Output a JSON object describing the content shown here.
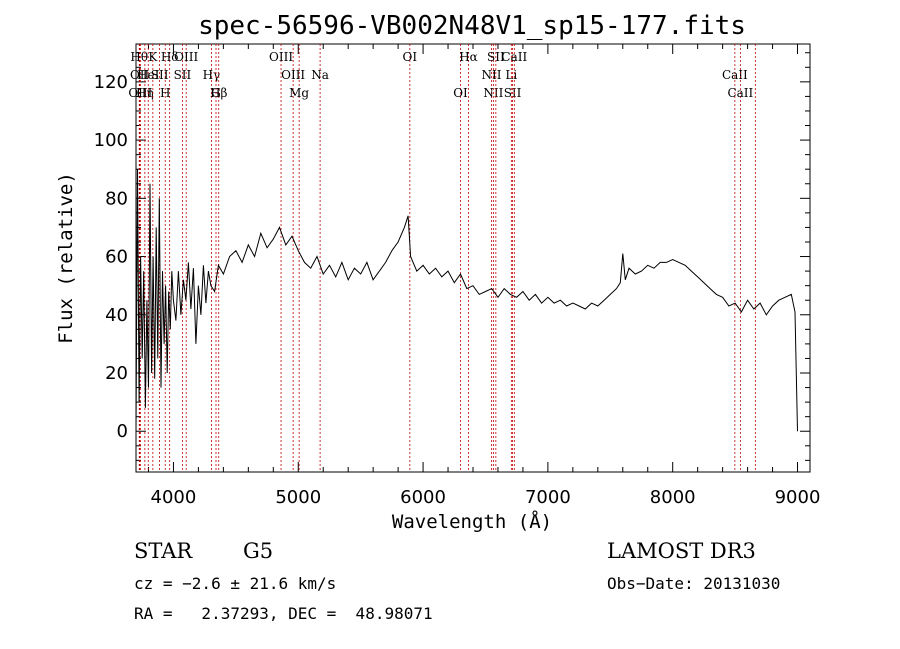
{
  "chart_data": {
    "type": "line",
    "title": "spec-56596-VB002N48V1_sp15-177.fits",
    "xlabel": "Wavelength (Å)",
    "ylabel": "Flux (relative)",
    "xlim": [
      3700,
      9100
    ],
    "ylim": [
      -14,
      133
    ],
    "xticks": [
      4000,
      5000,
      6000,
      7000,
      8000,
      9000
    ],
    "yticks": [
      0,
      20,
      40,
      60,
      80,
      100,
      120
    ],
    "grid": false,
    "series": [
      {
        "name": "flux",
        "x": [
          3700,
          3712,
          3725,
          3737,
          3750,
          3762,
          3775,
          3787,
          3800,
          3812,
          3825,
          3837,
          3850,
          3862,
          3875,
          3887,
          3900,
          3912,
          3925,
          3937,
          3950,
          3962,
          3975,
          3987,
          4000,
          4020,
          4040,
          4060,
          4080,
          4100,
          4120,
          4140,
          4160,
          4180,
          4200,
          4220,
          4240,
          4260,
          4280,
          4300,
          4330,
          4360,
          4400,
          4450,
          4500,
          4550,
          4600,
          4650,
          4700,
          4750,
          4800,
          4850,
          4900,
          4950,
          5000,
          5050,
          5100,
          5150,
          5200,
          5250,
          5300,
          5350,
          5400,
          5450,
          5500,
          5550,
          5600,
          5650,
          5700,
          5750,
          5800,
          5850,
          5880,
          5900,
          5920,
          5950,
          6000,
          6050,
          6100,
          6150,
          6200,
          6250,
          6300,
          6350,
          6400,
          6450,
          6500,
          6550,
          6600,
          6650,
          6700,
          6750,
          6800,
          6850,
          6900,
          6950,
          7000,
          7050,
          7100,
          7150,
          7200,
          7250,
          7300,
          7350,
          7400,
          7450,
          7500,
          7550,
          7580,
          7600,
          7620,
          7650,
          7700,
          7750,
          7800,
          7850,
          7900,
          7950,
          8000,
          8050,
          8100,
          8150,
          8200,
          8250,
          8300,
          8350,
          8400,
          8450,
          8500,
          8550,
          8600,
          8650,
          8700,
          8750,
          8800,
          8850,
          8900,
          8950,
          8980,
          9000
        ],
        "values": [
          0,
          90,
          10,
          60,
          25,
          55,
          8,
          45,
          15,
          85,
          20,
          60,
          18,
          70,
          25,
          80,
          15,
          55,
          30,
          50,
          20,
          48,
          35,
          55,
          45,
          38,
          55,
          40,
          52,
          45,
          58,
          42,
          56,
          30,
          50,
          40,
          57,
          44,
          55,
          50,
          48,
          57,
          54,
          60,
          62,
          58,
          64,
          60,
          68,
          63,
          66,
          70,
          64,
          67,
          62,
          58,
          56,
          60,
          54,
          57,
          53,
          58,
          52,
          56,
          54,
          58,
          52,
          55,
          58,
          62,
          65,
          70,
          74,
          60,
          58,
          55,
          57,
          54,
          56,
          53,
          55,
          51,
          54,
          49,
          50,
          47,
          48,
          49,
          46,
          49,
          47,
          46,
          48,
          45,
          47,
          44,
          46,
          44,
          45,
          43,
          44,
          43,
          42,
          44,
          43,
          45,
          47,
          49,
          51,
          61,
          52,
          56,
          54,
          55,
          57,
          56,
          58,
          58,
          59,
          58,
          57,
          55,
          53,
          51,
          49,
          47,
          46,
          43,
          44,
          41,
          45,
          42,
          44,
          40,
          43,
          45,
          46,
          47,
          41,
          0
        ]
      }
    ],
    "line_markers": [
      {
        "label": "Hθ",
        "x": 3726,
        "row": 0
      },
      {
        "label": "OII",
        "x": 3729,
        "row": 1
      },
      {
        "label": "OIII",
        "x": 3735,
        "row": 2
      },
      {
        "label": "Hη",
        "x": 3771,
        "row": 2
      },
      {
        "label": "HeI",
        "x": 3798,
        "row": 1
      },
      {
        "label": "K",
        "x": 3835,
        "row": 0
      },
      {
        "label": "SII",
        "x": 3889,
        "row": 1
      },
      {
        "label": "H",
        "x": 3934,
        "row": 2
      },
      {
        "label": "Hδ",
        "x": 3970,
        "row": 0
      },
      {
        "label": "SII",
        "x": 4072,
        "row": 1
      },
      {
        "label": "OIII",
        "x": 4102,
        "row": 0
      },
      {
        "label": "Hγ",
        "x": 4304,
        "row": 1
      },
      {
        "label": "G",
        "x": 4341,
        "row": 2
      },
      {
        "label": "Hβ",
        "x": 4363,
        "row": 2
      },
      {
        "label": "OIII",
        "x": 4862,
        "row": 0
      },
      {
        "label": "OIII",
        "x": 4959,
        "row": 1
      },
      {
        "label": "Mg",
        "x": 5007,
        "row": 2
      },
      {
        "label": "Na",
        "x": 5175,
        "row": 1
      },
      {
        "label": "OI",
        "x": 5894,
        "row": 0
      },
      {
        "label": "OI",
        "x": 6300,
        "row": 2
      },
      {
        "label": "Hα",
        "x": 6364,
        "row": 0
      },
      {
        "label": "NII",
        "x": 6548,
        "row": 1
      },
      {
        "label": "NII",
        "x": 6563,
        "row": 2
      },
      {
        "label": "SII",
        "x": 6583,
        "row": 0
      },
      {
        "label": "Li",
        "x": 6707,
        "row": 1
      },
      {
        "label": "SII",
        "x": 6717,
        "row": 2
      },
      {
        "label": "CaII",
        "x": 6731,
        "row": 0
      },
      {
        "label": "CaII",
        "x": 8498,
        "row": 1
      },
      {
        "label": "CaII",
        "x": 8542,
        "row": 2
      },
      {
        "label": "",
        "x": 8662,
        "row": 0
      }
    ]
  },
  "info": {
    "object_class": "STAR",
    "subclass": "G5",
    "survey": "LAMOST DR3",
    "redshift_line": "cz = −2.6 ± 21.6 km/s",
    "obs_date_line": "Obs−Date: 20131030",
    "coords_line": "RA =   2.37293, DEC =  48.98071"
  }
}
